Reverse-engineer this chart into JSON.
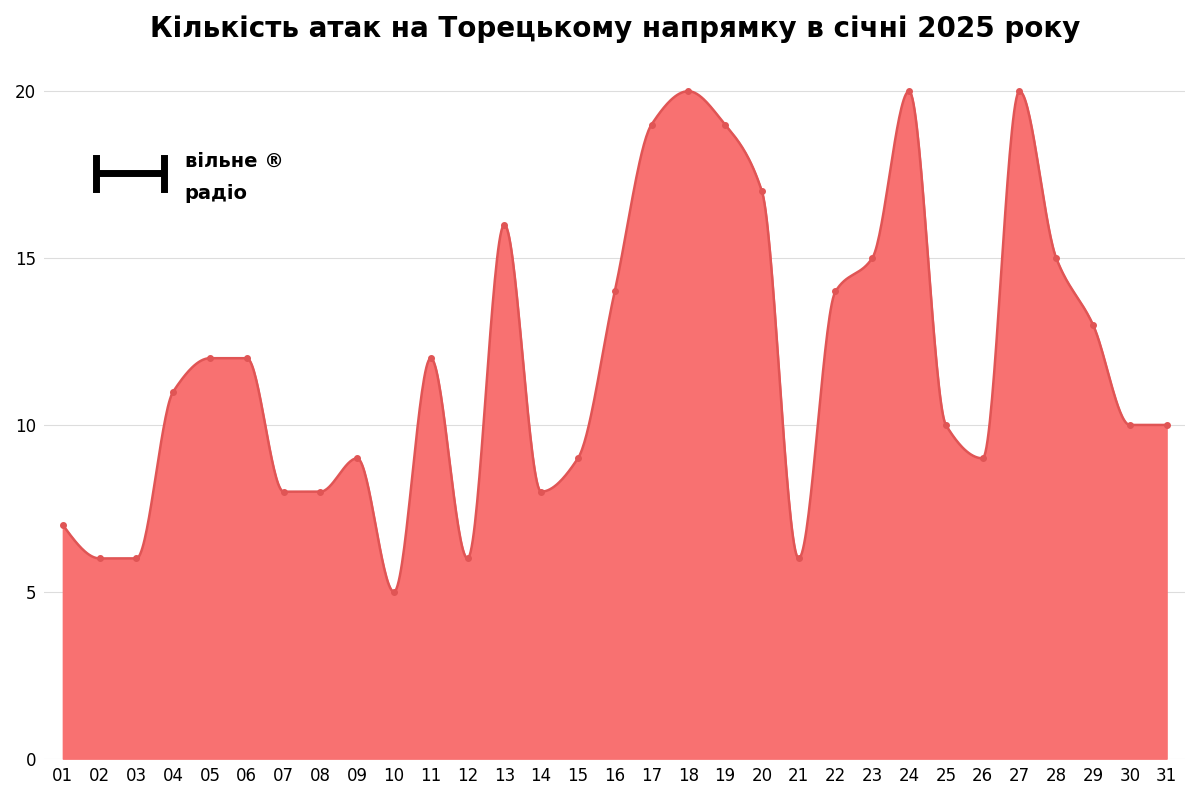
{
  "title": "Кількість атак на Торецькому напрямку в січні 2025 року",
  "days": [
    "01",
    "02",
    "03",
    "04",
    "05",
    "06",
    "07",
    "08",
    "09",
    "10",
    "11",
    "12",
    "13",
    "14",
    "15",
    "16",
    "17",
    "18",
    "19",
    "20",
    "21",
    "22",
    "23",
    "24",
    "25",
    "26",
    "27",
    "28",
    "29",
    "30",
    "31"
  ],
  "values": [
    7,
    6,
    6,
    11,
    12,
    12,
    8,
    8,
    9,
    5,
    12,
    6,
    16,
    8,
    9,
    14,
    19,
    20,
    19,
    17,
    6,
    14,
    15,
    20,
    10,
    9,
    20,
    15,
    13,
    10,
    10
  ],
  "fill_color": "#f87171",
  "line_color": "#e05555",
  "ylim": [
    0,
    21
  ],
  "yticks": [
    0,
    5,
    10,
    15,
    20
  ],
  "background_color": "#ffffff",
  "grid_color": "#dddddd",
  "title_fontsize": 20,
  "logo_text_line1": "вільне ®",
  "logo_text_line2": "радіо",
  "dot_color": "#e05555"
}
